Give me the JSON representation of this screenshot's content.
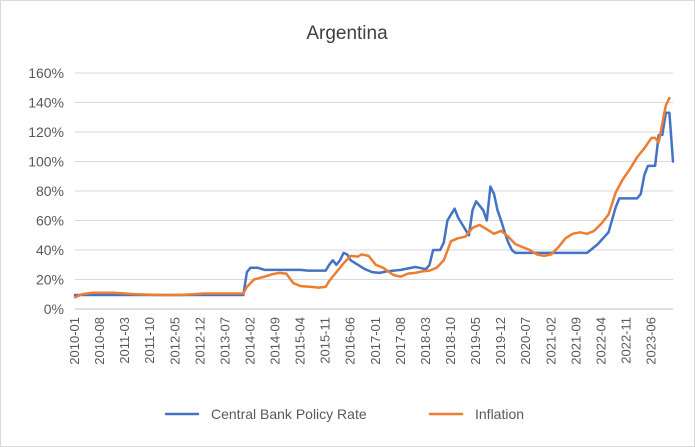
{
  "chart_data": {
    "type": "line",
    "title": "Argentina",
    "xlabel": "",
    "ylabel": "",
    "ylim": [
      0,
      1.6
    ],
    "y_ticks": [
      0,
      0.2,
      0.4,
      0.6,
      0.8,
      1.0,
      1.2,
      1.4,
      1.6
    ],
    "y_tick_labels": [
      "0%",
      "20%",
      "40%",
      "60%",
      "80%",
      "100%",
      "120%",
      "140%",
      "160%"
    ],
    "x_tick_labels": [
      "2010-01",
      "2010-08",
      "2011-03",
      "2011-10",
      "2012-05",
      "2012-12",
      "2013-07",
      "2014-02",
      "2014-09",
      "2015-04",
      "2015-11",
      "2016-06",
      "2017-01",
      "2017-08",
      "2018-03",
      "2018-10",
      "2019-05",
      "2019-12",
      "2020-07",
      "2021-02",
      "2021-09",
      "2022-04",
      "2022-11",
      "2023-06"
    ],
    "x_range": [
      "2010-01",
      "2023-12"
    ],
    "grid": "horizontal",
    "legend_position": "bottom",
    "series": [
      {
        "name": "Central Bank Policy Rate",
        "color": "#4472C4",
        "points": [
          [
            "2010-01",
            0.095
          ],
          [
            "2010-06",
            0.095
          ],
          [
            "2011-01",
            0.095
          ],
          [
            "2012-01",
            0.095
          ],
          [
            "2013-01",
            0.095
          ],
          [
            "2013-12",
            0.095
          ],
          [
            "2014-01",
            0.25
          ],
          [
            "2014-02",
            0.28
          ],
          [
            "2014-04",
            0.28
          ],
          [
            "2014-06",
            0.265
          ],
          [
            "2014-09",
            0.265
          ],
          [
            "2015-01",
            0.265
          ],
          [
            "2015-04",
            0.265
          ],
          [
            "2015-06",
            0.26
          ],
          [
            "2015-11",
            0.26
          ],
          [
            "2015-12",
            0.3
          ],
          [
            "2016-01",
            0.33
          ],
          [
            "2016-02",
            0.3
          ],
          [
            "2016-03",
            0.33
          ],
          [
            "2016-04",
            0.38
          ],
          [
            "2016-05",
            0.37
          ],
          [
            "2016-06",
            0.33
          ],
          [
            "2016-08",
            0.3
          ],
          [
            "2016-10",
            0.27
          ],
          [
            "2016-12",
            0.25
          ],
          [
            "2017-02",
            0.245
          ],
          [
            "2017-04",
            0.255
          ],
          [
            "2017-08",
            0.265
          ],
          [
            "2017-12",
            0.285
          ],
          [
            "2018-01",
            0.28
          ],
          [
            "2018-03",
            0.27
          ],
          [
            "2018-04",
            0.3
          ],
          [
            "2018-05",
            0.4
          ],
          [
            "2018-07",
            0.4
          ],
          [
            "2018-08",
            0.45
          ],
          [
            "2018-09",
            0.6
          ],
          [
            "2018-11",
            0.68
          ],
          [
            "2018-12",
            0.62
          ],
          [
            "2019-01",
            0.58
          ],
          [
            "2019-03",
            0.5
          ],
          [
            "2019-04",
            0.67
          ],
          [
            "2019-05",
            0.73
          ],
          [
            "2019-07",
            0.67
          ],
          [
            "2019-08",
            0.6
          ],
          [
            "2019-09",
            0.83
          ],
          [
            "2019-10",
            0.78
          ],
          [
            "2019-11",
            0.67
          ],
          [
            "2019-12",
            0.6
          ],
          [
            "2020-01",
            0.52
          ],
          [
            "2020-02",
            0.45
          ],
          [
            "2020-03",
            0.4
          ],
          [
            "2020-04",
            0.38
          ],
          [
            "2020-07",
            0.38
          ],
          [
            "2020-10",
            0.38
          ],
          [
            "2020-11",
            0.38
          ],
          [
            "2021-01",
            0.38
          ],
          [
            "2021-06",
            0.38
          ],
          [
            "2021-12",
            0.38
          ],
          [
            "2022-01",
            0.4
          ],
          [
            "2022-03",
            0.44
          ],
          [
            "2022-06",
            0.52
          ],
          [
            "2022-08",
            0.69
          ],
          [
            "2022-09",
            0.75
          ],
          [
            "2022-12",
            0.75
          ],
          [
            "2023-02",
            0.75
          ],
          [
            "2023-03",
            0.78
          ],
          [
            "2023-04",
            0.91
          ],
          [
            "2023-05",
            0.97
          ],
          [
            "2023-07",
            0.97
          ],
          [
            "2023-08",
            1.18
          ],
          [
            "2023-09",
            1.18
          ],
          [
            "2023-10",
            1.33
          ],
          [
            "2023-11",
            1.33
          ],
          [
            "2023-12",
            1.0
          ]
        ]
      },
      {
        "name": "Inflation",
        "color": "#ED7D31",
        "points": [
          [
            "2010-01",
            0.08
          ],
          [
            "2010-03",
            0.1
          ],
          [
            "2010-06",
            0.11
          ],
          [
            "2010-12",
            0.11
          ],
          [
            "2011-06",
            0.1
          ],
          [
            "2012-01",
            0.095
          ],
          [
            "2012-06",
            0.095
          ],
          [
            "2012-10",
            0.1
          ],
          [
            "2013-01",
            0.105
          ],
          [
            "2013-06",
            0.105
          ],
          [
            "2013-12",
            0.105
          ],
          [
            "2014-01",
            0.15
          ],
          [
            "2014-03",
            0.2
          ],
          [
            "2014-06",
            0.22
          ],
          [
            "2014-08",
            0.235
          ],
          [
            "2014-10",
            0.245
          ],
          [
            "2014-12",
            0.24
          ],
          [
            "2015-02",
            0.175
          ],
          [
            "2015-04",
            0.155
          ],
          [
            "2015-07",
            0.15
          ],
          [
            "2015-09",
            0.145
          ],
          [
            "2015-11",
            0.15
          ],
          [
            "2015-12",
            0.19
          ],
          [
            "2016-02",
            0.25
          ],
          [
            "2016-04",
            0.31
          ],
          [
            "2016-06",
            0.36
          ],
          [
            "2016-08",
            0.355
          ],
          [
            "2016-09",
            0.37
          ],
          [
            "2016-11",
            0.36
          ],
          [
            "2017-01",
            0.3
          ],
          [
            "2017-03",
            0.28
          ],
          [
            "2017-06",
            0.23
          ],
          [
            "2017-08",
            0.22
          ],
          [
            "2017-10",
            0.24
          ],
          [
            "2017-12",
            0.245
          ],
          [
            "2018-02",
            0.255
          ],
          [
            "2018-04",
            0.26
          ],
          [
            "2018-06",
            0.28
          ],
          [
            "2018-08",
            0.33
          ],
          [
            "2018-10",
            0.46
          ],
          [
            "2018-12",
            0.48
          ],
          [
            "2019-02",
            0.49
          ],
          [
            "2019-04",
            0.55
          ],
          [
            "2019-06",
            0.57
          ],
          [
            "2019-08",
            0.54
          ],
          [
            "2019-10",
            0.51
          ],
          [
            "2019-12",
            0.53
          ],
          [
            "2020-02",
            0.49
          ],
          [
            "2020-04",
            0.44
          ],
          [
            "2020-06",
            0.42
          ],
          [
            "2020-08",
            0.4
          ],
          [
            "2020-10",
            0.37
          ],
          [
            "2020-12",
            0.36
          ],
          [
            "2021-02",
            0.37
          ],
          [
            "2021-04",
            0.42
          ],
          [
            "2021-06",
            0.48
          ],
          [
            "2021-08",
            0.51
          ],
          [
            "2021-10",
            0.52
          ],
          [
            "2021-12",
            0.51
          ],
          [
            "2022-02",
            0.53
          ],
          [
            "2022-04",
            0.58
          ],
          [
            "2022-06",
            0.64
          ],
          [
            "2022-08",
            0.79
          ],
          [
            "2022-10",
            0.88
          ],
          [
            "2022-12",
            0.95
          ],
          [
            "2023-02",
            1.03
          ],
          [
            "2023-04",
            1.09
          ],
          [
            "2023-06",
            1.16
          ],
          [
            "2023-07",
            1.16
          ],
          [
            "2023-08",
            1.13
          ],
          [
            "2023-10",
            1.38
          ],
          [
            "2023-11",
            1.43
          ]
        ]
      }
    ]
  }
}
